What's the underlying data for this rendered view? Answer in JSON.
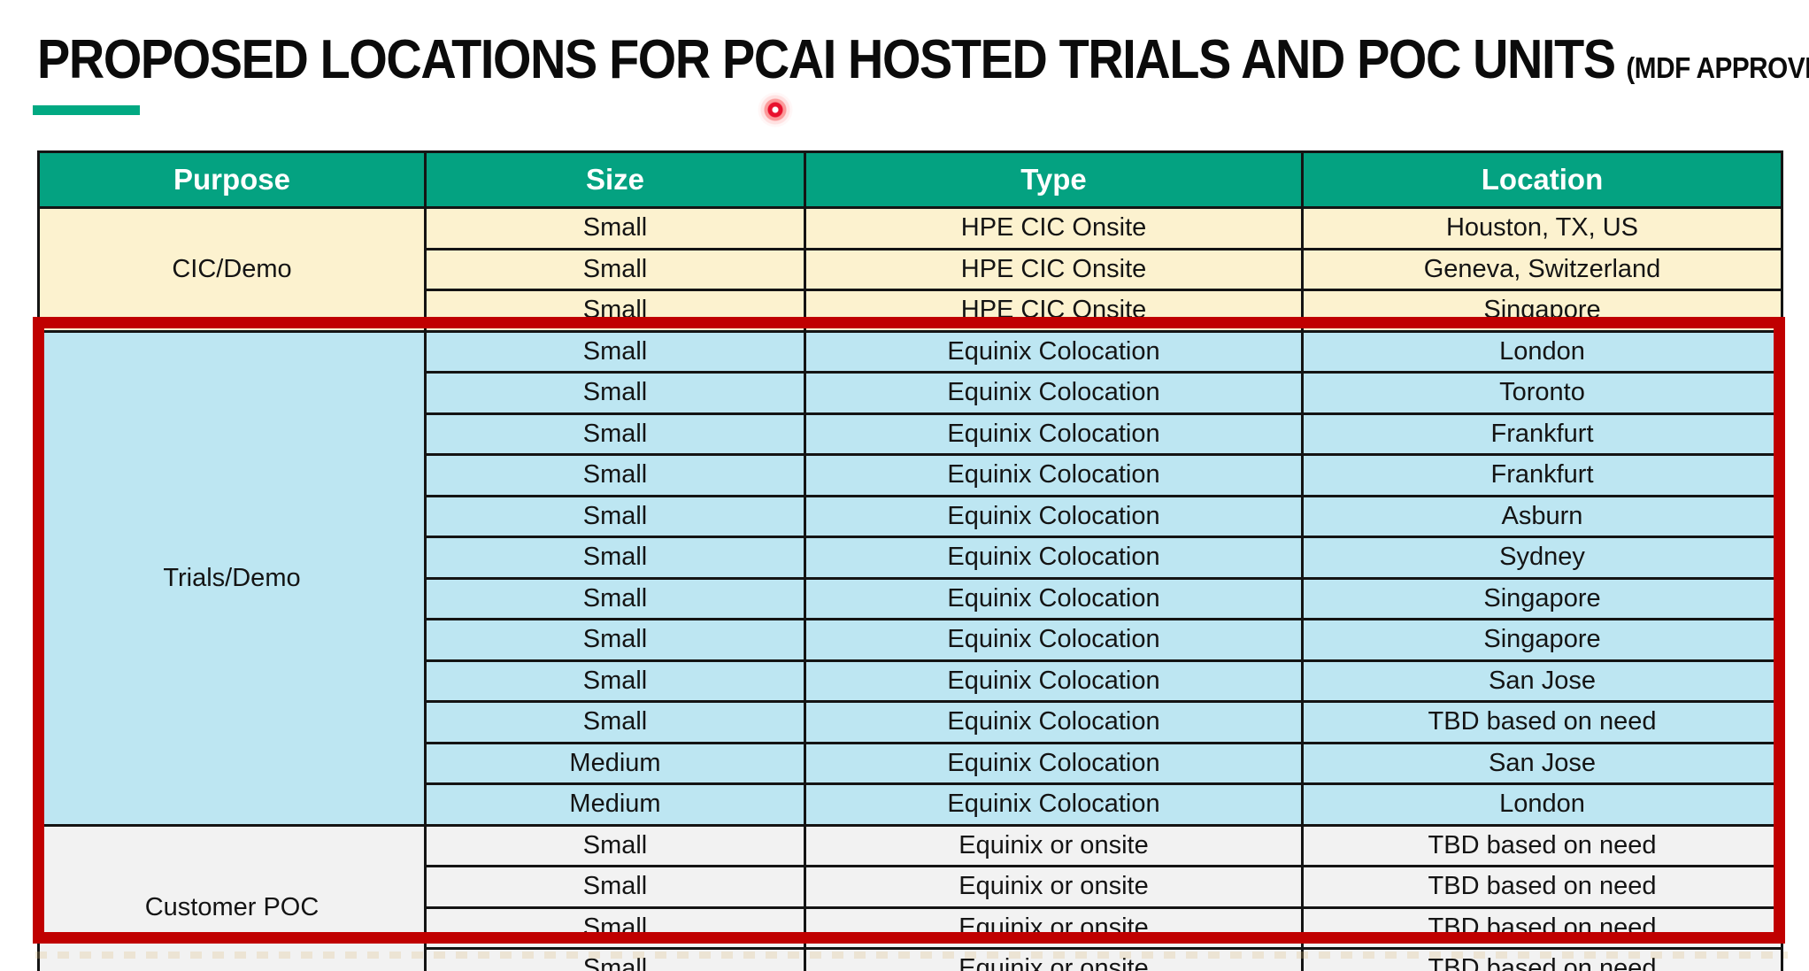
{
  "title": {
    "main": "PROPOSED LOCATIONS FOR PCAI HOSTED TRIALS AND POC UNITS",
    "suffix": "(MDF APPROVED)"
  },
  "colors": {
    "brand_green": "#01A982",
    "header_bg": "#04A281",
    "header_text": "#FFFFFF",
    "section_cic_bg": "#FCF2CF",
    "section_trials_bg": "#BDE6F2",
    "section_poc_bg": "#F2F2F2",
    "highlight_red": "#C00000",
    "laser_red": "#E8112D",
    "grid_black": "#141414"
  },
  "pointer": {
    "type": "laser-dot"
  },
  "table": {
    "columns": [
      "Purpose",
      "Size",
      "Type",
      "Location"
    ],
    "sections": [
      {
        "purpose": "CIC/Demo",
        "bg": "#FCF2CF",
        "highlighted": false,
        "rows": [
          [
            "Small",
            "HPE CIC Onsite",
            "Houston, TX, US"
          ],
          [
            "Small",
            "HPE CIC Onsite",
            "Geneva, Switzerland"
          ],
          [
            "Small",
            "HPE CIC Onsite",
            "Singapore"
          ]
        ]
      },
      {
        "purpose": "Trials/Demo",
        "bg": "#BDE6F2",
        "highlighted": true,
        "rows": [
          [
            "Small",
            "Equinix Colocation",
            "London"
          ],
          [
            "Small",
            "Equinix Colocation",
            "Toronto"
          ],
          [
            "Small",
            "Equinix Colocation",
            "Frankfurt"
          ],
          [
            "Small",
            "Equinix Colocation",
            "Frankfurt"
          ],
          [
            "Small",
            "Equinix Colocation",
            "Asburn"
          ],
          [
            "Small",
            "Equinix Colocation",
            "Sydney"
          ],
          [
            "Small",
            "Equinix Colocation",
            "Singapore"
          ],
          [
            "Small",
            "Equinix Colocation",
            "Singapore"
          ],
          [
            "Small",
            "Equinix Colocation",
            "San Jose"
          ],
          [
            "Small",
            "Equinix Colocation",
            "TBD based on need"
          ],
          [
            "Medium",
            "Equinix Colocation",
            "San Jose"
          ],
          [
            "Medium",
            "Equinix Colocation",
            "London"
          ]
        ]
      },
      {
        "purpose": "Customer POC",
        "bg": "#F2F2F2",
        "highlighted": true,
        "rows": [
          [
            "Small",
            "Equinix or onsite",
            "TBD based on need"
          ],
          [
            "Small",
            "Equinix or onsite",
            "TBD based on need"
          ],
          [
            "Small",
            "Equinix or onsite",
            "TBD based on need"
          ],
          [
            "Small",
            "Equinix or onsite",
            "TBD based on need"
          ]
        ]
      }
    ]
  }
}
